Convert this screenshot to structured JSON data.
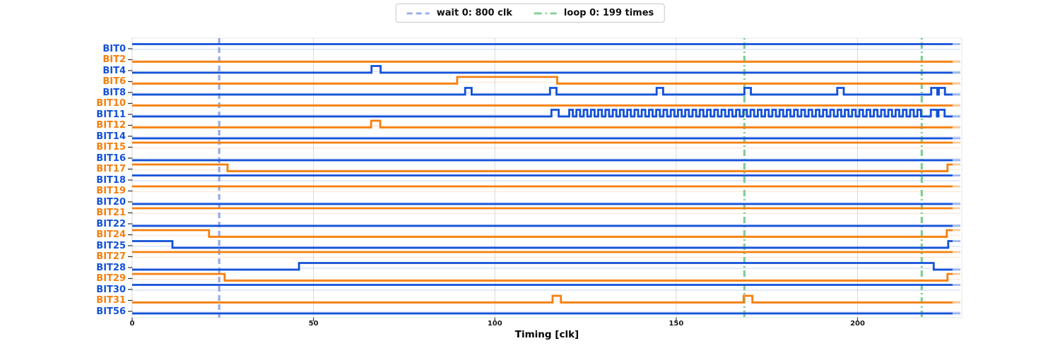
{
  "legend": {
    "items": [
      {
        "label": "wait 0: 800 clk"
      },
      {
        "label": "loop 0: 199 times"
      }
    ]
  },
  "colors": {
    "blue": "#1351d8",
    "orange": "#f57f0e",
    "wait_line": "#94abe6",
    "loop_line": "#7fce94",
    "grid": "#d9d9d9",
    "spine": "#e4e4e4",
    "tick": "#333333"
  },
  "chart_data": {
    "type": "timing-waveform",
    "xlabel": "Timing [clk]",
    "xticks": [
      0,
      50,
      100,
      150,
      200
    ],
    "x_range_clk": [
      0,
      226.2
    ],
    "grid": "vertical-gridlines-at-xticks",
    "legend_position": "top-center",
    "overlays": {
      "wait_lines": [
        {
          "label": "wait 0: 800 clk",
          "t": 24,
          "style": "dashed"
        }
      ],
      "loop_lines": [
        {
          "label": "loop 0: 199 times",
          "t_values": [
            168.8,
            217.7
          ],
          "style": "dashdot"
        }
      ]
    },
    "signals": [
      {
        "name": "BIT0",
        "color": "blue",
        "initial": 1,
        "edges": []
      },
      {
        "name": "BIT2",
        "color": "orange",
        "initial": 0,
        "edges": []
      },
      {
        "name": "BIT4",
        "color": "blue",
        "initial": 0,
        "edges": [
          66,
          68.5
        ]
      },
      {
        "name": "BIT6",
        "color": "orange",
        "initial": 0,
        "edges": [
          89.6,
          117.2
        ]
      },
      {
        "name": "BIT8",
        "color": "blue",
        "initial": 0,
        "edges": [
          91.8,
          93.6,
          115.2,
          117,
          144.6,
          146.4,
          168.8,
          170.6,
          194.4,
          196.2,
          220.3,
          222,
          222.4,
          224.1
        ]
      },
      {
        "name": "BIT10",
        "color": "orange",
        "initial": 0,
        "edges": []
      },
      {
        "name": "BIT11",
        "color": "blue",
        "initial": 0,
        "edges": [
          115.6,
          117.6
        ],
        "osc": {
          "start": 120.5,
          "end": 218.5,
          "half_period": 1
        },
        "edges_after": [
          220.2,
          221.9,
          222.3,
          224
        ]
      },
      {
        "name": "BIT12",
        "color": "orange",
        "initial": 0,
        "edges": [
          65.9,
          68.4
        ]
      },
      {
        "name": "BIT14",
        "color": "blue",
        "initial": 0,
        "edges": []
      },
      {
        "name": "BIT15",
        "color": "orange",
        "initial": 1,
        "edges": []
      },
      {
        "name": "BIT16",
        "color": "blue",
        "initial": 0,
        "edges": []
      },
      {
        "name": "BIT17",
        "color": "orange",
        "initial": 1,
        "edges": [
          26.3,
          224.8
        ]
      },
      {
        "name": "BIT18",
        "color": "blue",
        "initial": 1,
        "edges": []
      },
      {
        "name": "BIT19",
        "color": "orange",
        "initial": 1,
        "edges": []
      },
      {
        "name": "BIT20",
        "color": "blue",
        "initial": 0,
        "edges": []
      },
      {
        "name": "BIT21",
        "color": "orange",
        "initial": 1,
        "edges": []
      },
      {
        "name": "BIT22",
        "color": "blue",
        "initial": 0,
        "edges": []
      },
      {
        "name": "BIT24",
        "color": "orange",
        "initial": 1,
        "edges": [
          21.2,
          224.6
        ]
      },
      {
        "name": "BIT25",
        "color": "blue",
        "initial": 1,
        "edges": [
          11.1,
          225
        ]
      },
      {
        "name": "BIT27",
        "color": "orange",
        "initial": 1,
        "edges": []
      },
      {
        "name": "BIT28",
        "color": "blue",
        "initial": 0,
        "edges": [
          46,
          221
        ]
      },
      {
        "name": "BIT29",
        "color": "orange",
        "initial": 1,
        "edges": [
          25.5,
          224.8
        ]
      },
      {
        "name": "BIT30",
        "color": "blue",
        "initial": 1,
        "edges": []
      },
      {
        "name": "BIT31",
        "color": "orange",
        "initial": 0,
        "edges": [
          115.9,
          118.2,
          168.6,
          171
        ]
      },
      {
        "name": "BIT56",
        "color": "blue",
        "initial": 0,
        "edges": []
      }
    ]
  }
}
